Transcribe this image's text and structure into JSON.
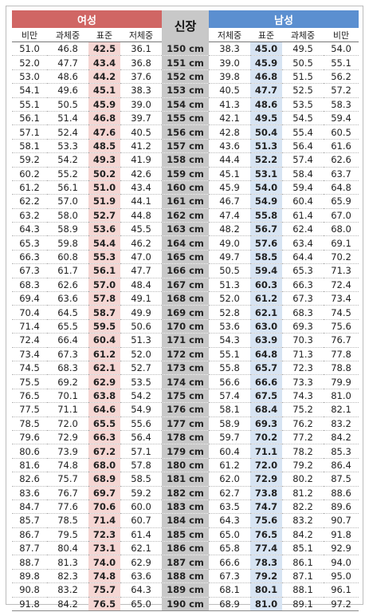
{
  "women": {
    "title": "여성",
    "columns": [
      "비만",
      "과체중",
      "표준",
      "저체중"
    ]
  },
  "height": {
    "title": "신장"
  },
  "men": {
    "title": "남성",
    "columns": [
      "저체중",
      "표준",
      "과체중",
      "비만"
    ]
  },
  "rows": [
    {
      "h": "150 cm",
      "w": [
        "51.0",
        "46.8",
        "42.5",
        "36.1"
      ],
      "m": [
        "38.3",
        "45.0",
        "49.5",
        "54.0"
      ]
    },
    {
      "h": "151 cm",
      "w": [
        "52.0",
        "47.7",
        "43.4",
        "36.8"
      ],
      "m": [
        "39.0",
        "45.9",
        "50.5",
        "55.1"
      ]
    },
    {
      "h": "152 cm",
      "w": [
        "53.0",
        "48.6",
        "44.2",
        "37.6"
      ],
      "m": [
        "39.8",
        "46.8",
        "51.5",
        "56.2"
      ]
    },
    {
      "h": "153 cm",
      "w": [
        "54.1",
        "49.6",
        "45.1",
        "38.3"
      ],
      "m": [
        "40.5",
        "47.7",
        "52.5",
        "57.2"
      ]
    },
    {
      "h": "154 cm",
      "w": [
        "55.1",
        "50.5",
        "45.9",
        "39.0"
      ],
      "m": [
        "41.3",
        "48.6",
        "53.5",
        "58.3"
      ]
    },
    {
      "h": "155 cm",
      "w": [
        "56.1",
        "51.4",
        "46.8",
        "39.7"
      ],
      "m": [
        "42.1",
        "49.5",
        "54.5",
        "59.4"
      ]
    },
    {
      "h": "156 cm",
      "w": [
        "57.1",
        "52.4",
        "47.6",
        "40.5"
      ],
      "m": [
        "42.8",
        "50.4",
        "55.4",
        "60.5"
      ]
    },
    {
      "h": "157 cm",
      "w": [
        "58.1",
        "53.3",
        "48.5",
        "41.2"
      ],
      "m": [
        "43.6",
        "51.3",
        "56.4",
        "61.6"
      ]
    },
    {
      "h": "158 cm",
      "w": [
        "59.2",
        "54.2",
        "49.3",
        "41.9"
      ],
      "m": [
        "44.4",
        "52.2",
        "57.4",
        "62.6"
      ]
    },
    {
      "h": "159 cm",
      "w": [
        "60.2",
        "55.2",
        "50.2",
        "42.6"
      ],
      "m": [
        "45.1",
        "53.1",
        "58.4",
        "63.7"
      ]
    },
    {
      "h": "160 cm",
      "w": [
        "61.2",
        "56.1",
        "51.0",
        "43.4"
      ],
      "m": [
        "45.9",
        "54.0",
        "59.4",
        "64.8"
      ]
    },
    {
      "h": "161 cm",
      "w": [
        "62.2",
        "57.0",
        "51.9",
        "44.1"
      ],
      "m": [
        "46.7",
        "54.9",
        "60.4",
        "65.9"
      ]
    },
    {
      "h": "162 cm",
      "w": [
        "63.2",
        "58.0",
        "52.7",
        "44.8"
      ],
      "m": [
        "47.4",
        "55.8",
        "61.4",
        "67.0"
      ]
    },
    {
      "h": "163 cm",
      "w": [
        "64.3",
        "58.9",
        "53.6",
        "45.5"
      ],
      "m": [
        "48.2",
        "56.7",
        "62.4",
        "68.0"
      ]
    },
    {
      "h": "164 cm",
      "w": [
        "65.3",
        "59.8",
        "54.4",
        "46.2"
      ],
      "m": [
        "49.0",
        "57.6",
        "63.4",
        "69.1"
      ]
    },
    {
      "h": "165 cm",
      "w": [
        "66.3",
        "60.8",
        "55.3",
        "47.0"
      ],
      "m": [
        "49.7",
        "58.5",
        "64.4",
        "70.2"
      ]
    },
    {
      "h": "166 cm",
      "w": [
        "67.3",
        "61.7",
        "56.1",
        "47.7"
      ],
      "m": [
        "50.5",
        "59.4",
        "65.3",
        "71.3"
      ]
    },
    {
      "h": "167 cm",
      "w": [
        "68.3",
        "62.6",
        "57.0",
        "48.4"
      ],
      "m": [
        "51.3",
        "60.3",
        "66.3",
        "72.4"
      ]
    },
    {
      "h": "168 cm",
      "w": [
        "69.4",
        "63.6",
        "57.8",
        "49.1"
      ],
      "m": [
        "52.0",
        "61.2",
        "67.3",
        "73.4"
      ]
    },
    {
      "h": "169 cm",
      "w": [
        "70.4",
        "64.5",
        "58.7",
        "49.9"
      ],
      "m": [
        "52.8",
        "62.1",
        "68.3",
        "74.5"
      ]
    },
    {
      "h": "170 cm",
      "w": [
        "71.4",
        "65.5",
        "59.5",
        "50.6"
      ],
      "m": [
        "53.6",
        "63.0",
        "69.3",
        "75.6"
      ]
    },
    {
      "h": "171 cm",
      "w": [
        "72.4",
        "66.4",
        "60.4",
        "51.3"
      ],
      "m": [
        "54.3",
        "63.9",
        "70.3",
        "76.7"
      ]
    },
    {
      "h": "172 cm",
      "w": [
        "73.4",
        "67.3",
        "61.2",
        "52.0"
      ],
      "m": [
        "55.1",
        "64.8",
        "71.3",
        "77.8"
      ]
    },
    {
      "h": "173 cm",
      "w": [
        "74.5",
        "68.3",
        "62.1",
        "52.7"
      ],
      "m": [
        "55.8",
        "65.7",
        "72.3",
        "78.8"
      ]
    },
    {
      "h": "174 cm",
      "w": [
        "75.5",
        "69.2",
        "62.9",
        "53.5"
      ],
      "m": [
        "56.6",
        "66.6",
        "73.3",
        "79.9"
      ]
    },
    {
      "h": "175 cm",
      "w": [
        "76.5",
        "70.1",
        "63.8",
        "54.2"
      ],
      "m": [
        "57.4",
        "67.5",
        "74.3",
        "81.0"
      ]
    },
    {
      "h": "176 cm",
      "w": [
        "77.5",
        "71.1",
        "64.6",
        "54.9"
      ],
      "m": [
        "58.1",
        "68.4",
        "75.2",
        "82.1"
      ]
    },
    {
      "h": "177 cm",
      "w": [
        "78.5",
        "72.0",
        "65.5",
        "55.6"
      ],
      "m": [
        "58.9",
        "69.3",
        "76.2",
        "83.2"
      ]
    },
    {
      "h": "178 cm",
      "w": [
        "79.6",
        "72.9",
        "66.3",
        "56.4"
      ],
      "m": [
        "59.7",
        "70.2",
        "77.2",
        "84.2"
      ]
    },
    {
      "h": "179 cm",
      "w": [
        "80.6",
        "73.9",
        "67.2",
        "57.1"
      ],
      "m": [
        "60.4",
        "71.1",
        "78.2",
        "85.3"
      ]
    },
    {
      "h": "180 cm",
      "w": [
        "81.6",
        "74.8",
        "68.0",
        "57.8"
      ],
      "m": [
        "61.2",
        "72.0",
        "79.2",
        "86.4"
      ]
    },
    {
      "h": "181 cm",
      "w": [
        "82.6",
        "75.7",
        "68.9",
        "58.5"
      ],
      "m": [
        "62.0",
        "72.9",
        "80.2",
        "87.5"
      ]
    },
    {
      "h": "182 cm",
      "w": [
        "83.6",
        "76.7",
        "69.7",
        "59.2"
      ],
      "m": [
        "62.7",
        "73.8",
        "81.2",
        "88.6"
      ]
    },
    {
      "h": "183 cm",
      "w": [
        "84.7",
        "77.6",
        "70.6",
        "60.0"
      ],
      "m": [
        "63.5",
        "74.7",
        "82.2",
        "89.6"
      ]
    },
    {
      "h": "184 cm",
      "w": [
        "85.7",
        "78.5",
        "71.4",
        "60.7"
      ],
      "m": [
        "64.3",
        "75.6",
        "83.2",
        "90.7"
      ]
    },
    {
      "h": "185 cm",
      "w": [
        "86.7",
        "79.5",
        "72.3",
        "61.4"
      ],
      "m": [
        "65.0",
        "76.5",
        "84.2",
        "91.8"
      ]
    },
    {
      "h": "186 cm",
      "w": [
        "87.7",
        "80.4",
        "73.1",
        "62.1"
      ],
      "m": [
        "65.8",
        "77.4",
        "85.1",
        "92.9"
      ]
    },
    {
      "h": "187 cm",
      "w": [
        "88.7",
        "81.3",
        "74.0",
        "62.9"
      ],
      "m": [
        "66.6",
        "78.3",
        "86.1",
        "94.0"
      ]
    },
    {
      "h": "188 cm",
      "w": [
        "89.8",
        "82.3",
        "74.8",
        "63.6"
      ],
      "m": [
        "67.3",
        "79.2",
        "87.1",
        "95.0"
      ]
    },
    {
      "h": "189 cm",
      "w": [
        "90.8",
        "83.2",
        "75.7",
        "64.3"
      ],
      "m": [
        "68.1",
        "80.1",
        "88.1",
        "96.1"
      ]
    },
    {
      "h": "190 cm",
      "w": [
        "91.8",
        "84.2",
        "76.5",
        "65.0"
      ],
      "m": [
        "68.9",
        "81.0",
        "89.1",
        "97.2"
      ]
    }
  ]
}
